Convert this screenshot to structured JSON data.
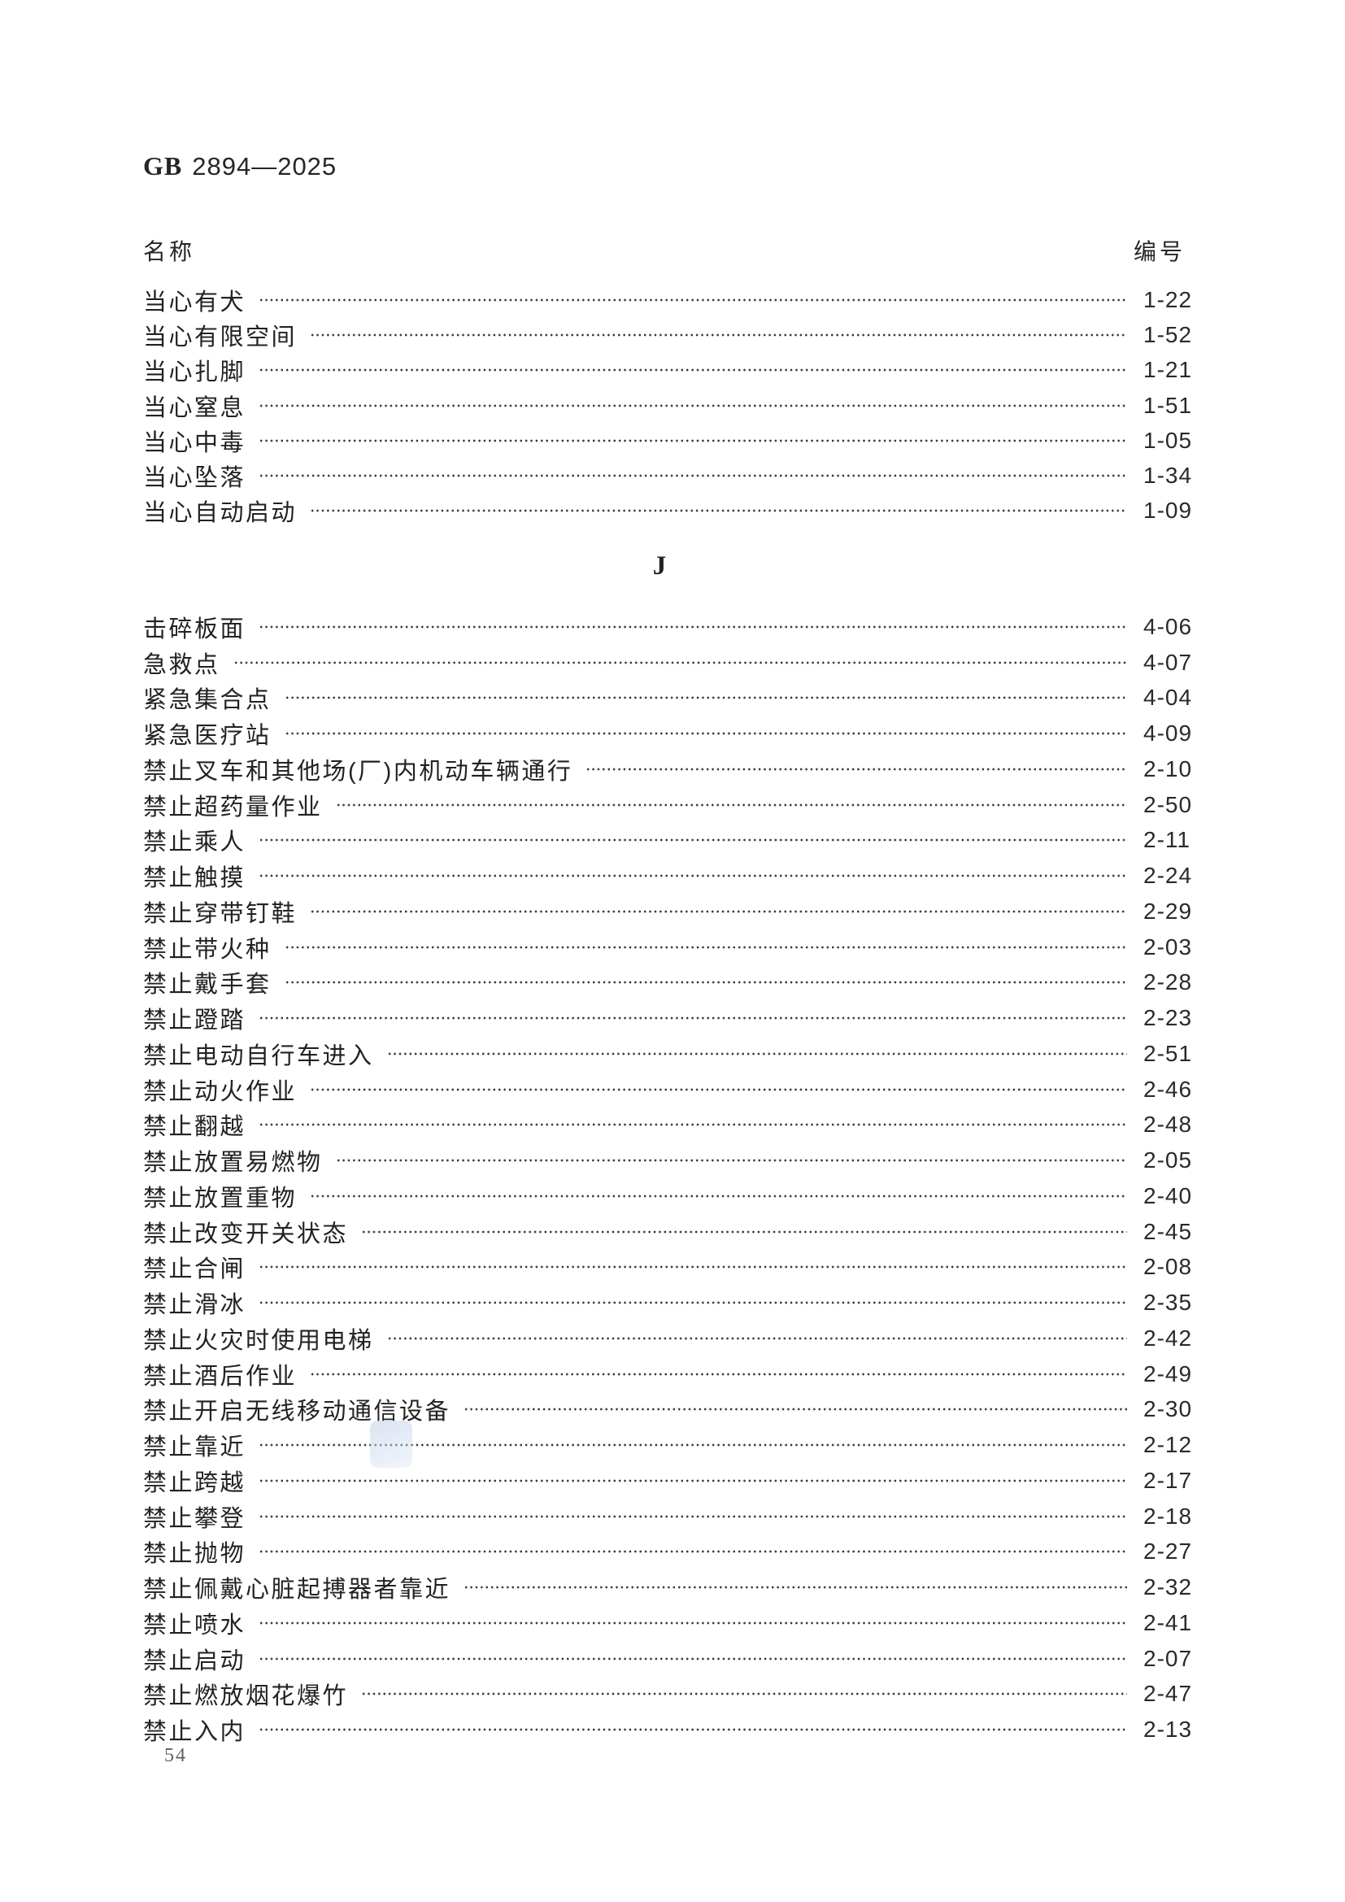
{
  "document": {
    "standard_prefix": "GB",
    "standard_number": "2894—2025",
    "name_header": "名称",
    "code_header": "编号",
    "section_letter": "J",
    "page_number": "54"
  },
  "index_entries_top": [
    {
      "name": "当心有犬",
      "code": "1-22"
    },
    {
      "name": "当心有限空间",
      "code": "1-52"
    },
    {
      "name": "当心扎脚",
      "code": "1-21"
    },
    {
      "name": "当心窒息",
      "code": "1-51"
    },
    {
      "name": "当心中毒",
      "code": "1-05"
    },
    {
      "name": "当心坠落",
      "code": "1-34"
    },
    {
      "name": "当心自动启动",
      "code": "1-09"
    }
  ],
  "index_entries_j": [
    {
      "name": "击碎板面",
      "code": "4-06"
    },
    {
      "name": "急救点",
      "code": "4-07"
    },
    {
      "name": "紧急集合点",
      "code": "4-04"
    },
    {
      "name": "紧急医疗站",
      "code": "4-09"
    },
    {
      "name": "禁止叉车和其他场(厂)内机动车辆通行",
      "code": "2-10"
    },
    {
      "name": "禁止超药量作业",
      "code": "2-50"
    },
    {
      "name": "禁止乘人",
      "code": "2-11"
    },
    {
      "name": "禁止触摸",
      "code": "2-24"
    },
    {
      "name": "禁止穿带钉鞋",
      "code": "2-29"
    },
    {
      "name": "禁止带火种",
      "code": "2-03"
    },
    {
      "name": "禁止戴手套",
      "code": "2-28"
    },
    {
      "name": "禁止蹬踏",
      "code": "2-23"
    },
    {
      "name": "禁止电动自行车进入",
      "code": "2-51"
    },
    {
      "name": "禁止动火作业",
      "code": "2-46"
    },
    {
      "name": "禁止翻越",
      "code": "2-48"
    },
    {
      "name": "禁止放置易燃物",
      "code": "2-05"
    },
    {
      "name": "禁止放置重物",
      "code": "2-40"
    },
    {
      "name": "禁止改变开关状态",
      "code": "2-45"
    },
    {
      "name": "禁止合闸",
      "code": "2-08"
    },
    {
      "name": "禁止滑冰",
      "code": "2-35"
    },
    {
      "name": "禁止火灾时使用电梯",
      "code": "2-42"
    },
    {
      "name": "禁止酒后作业",
      "code": "2-49"
    },
    {
      "name": "禁止开启无线移动通信设备",
      "code": "2-30"
    },
    {
      "name": "禁止靠近",
      "code": "2-12"
    },
    {
      "name": "禁止跨越",
      "code": "2-17"
    },
    {
      "name": "禁止攀登",
      "code": "2-18"
    },
    {
      "name": "禁止抛物",
      "code": "2-27"
    },
    {
      "name": "禁止佩戴心脏起搏器者靠近",
      "code": "2-32"
    },
    {
      "name": "禁止喷水",
      "code": "2-41"
    },
    {
      "name": "禁止启动",
      "code": "2-07"
    },
    {
      "name": "禁止燃放烟花爆竹",
      "code": "2-47"
    },
    {
      "name": "禁止入内",
      "code": "2-13"
    }
  ]
}
